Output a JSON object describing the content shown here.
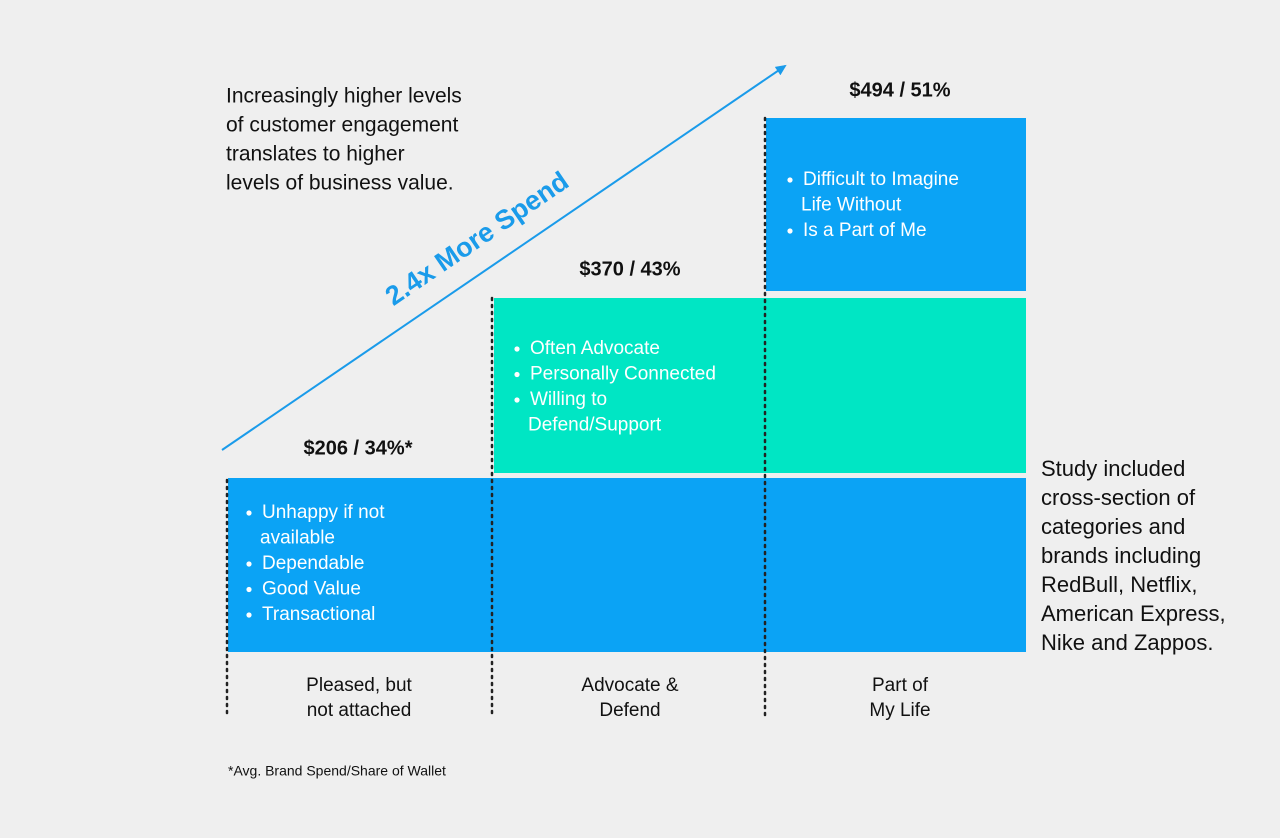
{
  "intro": [
    "Increasingly higher levels",
    "of customer engagement",
    "translates to higher",
    "levels of business value."
  ],
  "arrow_label": "2.4x More Spend",
  "tiers": [
    {
      "value_label": "$206 / 34%*",
      "bullets": [
        [
          "Unhappy if not",
          "available"
        ],
        [
          "Dependable"
        ],
        [
          "Good Value"
        ],
        [
          "Transactional"
        ]
      ],
      "category": [
        "Pleased, but",
        "not attached"
      ]
    },
    {
      "value_label": "$370 / 43%",
      "bullets": [
        [
          "Often Advocate"
        ],
        [
          "Personally Connected"
        ],
        [
          "Willing to",
          "Defend/Support"
        ]
      ],
      "category": [
        "Advocate &",
        "Defend"
      ]
    },
    {
      "value_label": "$494 / 51%",
      "bullets": [
        [
          "Difficult to Imagine",
          "Life Without"
        ],
        [
          "Is a Part of Me"
        ]
      ],
      "category": [
        "Part of",
        "My Life"
      ]
    }
  ],
  "note": [
    "Study included",
    "cross-section of",
    "categories and",
    "brands including",
    "RedBull, Netflix,",
    "American Express,",
    "Nike and Zappos."
  ],
  "footnote": "*Avg. Brand Spend/Share of Wallet"
}
